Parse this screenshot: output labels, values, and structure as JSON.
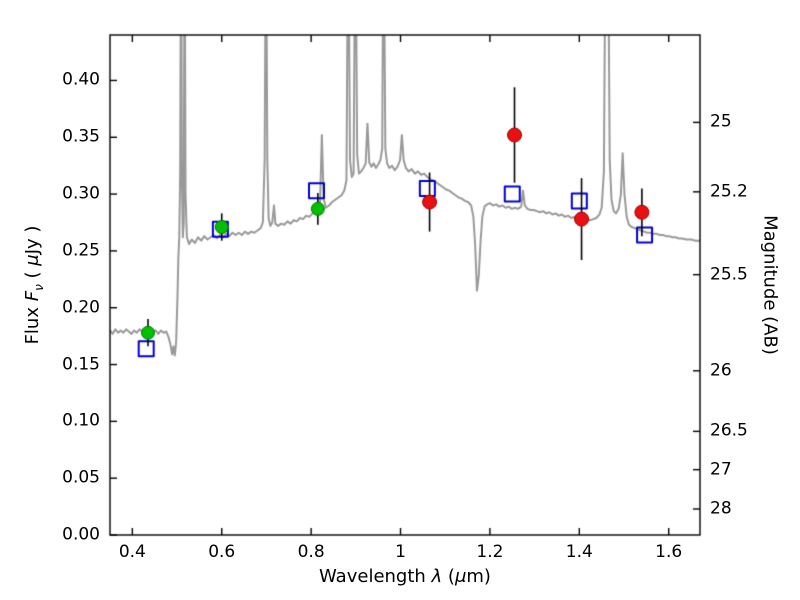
{
  "figure": {
    "background": "#ffffff",
    "frame_color": "#000000",
    "title": ""
  },
  "chart_data": {
    "type": "line",
    "title": "",
    "xlabel_parts": [
      "Wavelength ",
      "λ",
      " (",
      "μ",
      "m)"
    ],
    "ylabel_left_parts": [
      "Flux ",
      "F",
      "ν",
      " ( ",
      "μ",
      "Jy )"
    ],
    "ylabel_right": "Magnitude (AB)",
    "xlim": [
      0.35,
      1.67
    ],
    "ylim": [
      0.0,
      0.44
    ],
    "grid": false,
    "legend": null,
    "errorbar_color": "#000000",
    "x_ticks": [
      {
        "value": 0.4,
        "label": "0.4"
      },
      {
        "value": 0.6,
        "label": "0.6"
      },
      {
        "value": 0.8,
        "label": "0.8"
      },
      {
        "value": 1.0,
        "label": "1"
      },
      {
        "value": 1.2,
        "label": "1.2"
      },
      {
        "value": 1.4,
        "label": "1.4"
      },
      {
        "value": 1.6,
        "label": "1.6"
      }
    ],
    "y_ticks_left": [
      {
        "value": 0.0,
        "label": "0.00"
      },
      {
        "value": 0.05,
        "label": "0.05"
      },
      {
        "value": 0.1,
        "label": "0.10"
      },
      {
        "value": 0.15,
        "label": "0.15"
      },
      {
        "value": 0.2,
        "label": "0.20"
      },
      {
        "value": 0.25,
        "label": "0.25"
      },
      {
        "value": 0.3,
        "label": "0.30"
      },
      {
        "value": 0.35,
        "label": "0.35"
      },
      {
        "value": 0.4,
        "label": "0.40"
      }
    ],
    "y_ticks_right": [
      {
        "label": "25",
        "flux": 0.3631
      },
      {
        "label": "25.2",
        "flux": 0.302
      },
      {
        "label": "25.5",
        "flux": 0.2291
      },
      {
        "label": "26",
        "flux": 0.1445
      },
      {
        "label": "26.5",
        "flux": 0.0912
      },
      {
        "label": "27",
        "flux": 0.0575
      },
      {
        "label": "28",
        "flux": 0.0229
      }
    ],
    "series": [
      {
        "name": "model-spectrum",
        "type": "line",
        "color": "#999999",
        "linewidth": 2,
        "points": [
          [
            0.35,
            0.18
          ],
          [
            0.356,
            0.177
          ],
          [
            0.362,
            0.181
          ],
          [
            0.368,
            0.178
          ],
          [
            0.374,
            0.18
          ],
          [
            0.38,
            0.178
          ],
          [
            0.386,
            0.181
          ],
          [
            0.392,
            0.179
          ],
          [
            0.398,
            0.177
          ],
          [
            0.404,
            0.18
          ],
          [
            0.41,
            0.178
          ],
          [
            0.416,
            0.181
          ],
          [
            0.422,
            0.179
          ],
          [
            0.428,
            0.18
          ],
          [
            0.434,
            0.178
          ],
          [
            0.44,
            0.181
          ],
          [
            0.446,
            0.179
          ],
          [
            0.452,
            0.18
          ],
          [
            0.458,
            0.177
          ],
          [
            0.464,
            0.18
          ],
          [
            0.47,
            0.178
          ],
          [
            0.476,
            0.179
          ],
          [
            0.481,
            0.174
          ],
          [
            0.485,
            0.168
          ],
          [
            0.489,
            0.159
          ],
          [
            0.492,
            0.166
          ],
          [
            0.495,
            0.158
          ],
          [
            0.498,
            0.17
          ],
          [
            0.501,
            0.21
          ],
          [
            0.503,
            0.245
          ],
          [
            0.505,
            0.262
          ],
          [
            0.507,
            0.32
          ],
          [
            0.509,
            0.56
          ],
          [
            0.511,
            0.31
          ],
          [
            0.513,
            0.262
          ],
          [
            0.515,
            0.275
          ],
          [
            0.517,
            0.56
          ],
          [
            0.519,
            0.3
          ],
          [
            0.522,
            0.262
          ],
          [
            0.527,
            0.256
          ],
          [
            0.533,
            0.26
          ],
          [
            0.54,
            0.257
          ],
          [
            0.547,
            0.262
          ],
          [
            0.554,
            0.259
          ],
          [
            0.561,
            0.263
          ],
          [
            0.568,
            0.26
          ],
          [
            0.575,
            0.262
          ],
          [
            0.582,
            0.264
          ],
          [
            0.589,
            0.261
          ],
          [
            0.596,
            0.264
          ],
          [
            0.603,
            0.262
          ],
          [
            0.61,
            0.265
          ],
          [
            0.617,
            0.263
          ],
          [
            0.624,
            0.266
          ],
          [
            0.631,
            0.264
          ],
          [
            0.638,
            0.266
          ],
          [
            0.645,
            0.264
          ],
          [
            0.652,
            0.267
          ],
          [
            0.659,
            0.265
          ],
          [
            0.666,
            0.267
          ],
          [
            0.673,
            0.266
          ],
          [
            0.68,
            0.268
          ],
          [
            0.687,
            0.27
          ],
          [
            0.692,
            0.275
          ],
          [
            0.696,
            0.33
          ],
          [
            0.699,
            0.56
          ],
          [
            0.702,
            0.33
          ],
          [
            0.705,
            0.278
          ],
          [
            0.709,
            0.272
          ],
          [
            0.713,
            0.275
          ],
          [
            0.717,
            0.29
          ],
          [
            0.72,
            0.274
          ],
          [
            0.726,
            0.272
          ],
          [
            0.733,
            0.274
          ],
          [
            0.74,
            0.273
          ],
          [
            0.747,
            0.276
          ],
          [
            0.754,
            0.274
          ],
          [
            0.761,
            0.277
          ],
          [
            0.768,
            0.276
          ],
          [
            0.775,
            0.279
          ],
          [
            0.782,
            0.278
          ],
          [
            0.789,
            0.281
          ],
          [
            0.796,
            0.28
          ],
          [
            0.803,
            0.283
          ],
          [
            0.81,
            0.285
          ],
          [
            0.816,
            0.287
          ],
          [
            0.82,
            0.293
          ],
          [
            0.824,
            0.352
          ],
          [
            0.828,
            0.296
          ],
          [
            0.833,
            0.288
          ],
          [
            0.84,
            0.29
          ],
          [
            0.847,
            0.293
          ],
          [
            0.854,
            0.295
          ],
          [
            0.861,
            0.297
          ],
          [
            0.868,
            0.299
          ],
          [
            0.874,
            0.303
          ],
          [
            0.879,
            0.312
          ],
          [
            0.883,
            0.56
          ],
          [
            0.887,
            0.33
          ],
          [
            0.891,
            0.315
          ],
          [
            0.895,
            0.318
          ],
          [
            0.899,
            0.56
          ],
          [
            0.903,
            0.335
          ],
          [
            0.907,
            0.318
          ],
          [
            0.912,
            0.32
          ],
          [
            0.917,
            0.323
          ],
          [
            0.922,
            0.327
          ],
          [
            0.926,
            0.362
          ],
          [
            0.93,
            0.328
          ],
          [
            0.935,
            0.324
          ],
          [
            0.94,
            0.327
          ],
          [
            0.945,
            0.323
          ],
          [
            0.95,
            0.326
          ],
          [
            0.955,
            0.33
          ],
          [
            0.959,
            0.34
          ],
          [
            0.962,
            0.56
          ],
          [
            0.966,
            0.34
          ],
          [
            0.97,
            0.327
          ],
          [
            0.975,
            0.323
          ],
          [
            0.981,
            0.325
          ],
          [
            0.987,
            0.321
          ],
          [
            0.993,
            0.324
          ],
          [
            0.999,
            0.33
          ],
          [
            1.003,
            0.352
          ],
          [
            1.007,
            0.33
          ],
          [
            1.012,
            0.323
          ],
          [
            1.018,
            0.32
          ],
          [
            1.025,
            0.322
          ],
          [
            1.032,
            0.318
          ],
          [
            1.039,
            0.32
          ],
          [
            1.046,
            0.317
          ],
          [
            1.053,
            0.318
          ],
          [
            1.06,
            0.315
          ],
          [
            1.067,
            0.313
          ],
          [
            1.074,
            0.312
          ],
          [
            1.081,
            0.31
          ],
          [
            1.088,
            0.308
          ],
          [
            1.095,
            0.306
          ],
          [
            1.102,
            0.304
          ],
          [
            1.109,
            0.303
          ],
          [
            1.116,
            0.301
          ],
          [
            1.123,
            0.299
          ],
          [
            1.13,
            0.297
          ],
          [
            1.137,
            0.296
          ],
          [
            1.144,
            0.294
          ],
          [
            1.151,
            0.293
          ],
          [
            1.158,
            0.29
          ],
          [
            1.163,
            0.28
          ],
          [
            1.167,
            0.255
          ],
          [
            1.171,
            0.215
          ],
          [
            1.175,
            0.228
          ],
          [
            1.179,
            0.258
          ],
          [
            1.183,
            0.28
          ],
          [
            1.188,
            0.289
          ],
          [
            1.194,
            0.291
          ],
          [
            1.2,
            0.292
          ],
          [
            1.207,
            0.29
          ],
          [
            1.214,
            0.291
          ],
          [
            1.221,
            0.289
          ],
          [
            1.228,
            0.29
          ],
          [
            1.235,
            0.288
          ],
          [
            1.242,
            0.289
          ],
          [
            1.249,
            0.287
          ],
          [
            1.256,
            0.288
          ],
          [
            1.263,
            0.287
          ],
          [
            1.27,
            0.289
          ],
          [
            1.274,
            0.303
          ],
          [
            1.278,
            0.29
          ],
          [
            1.284,
            0.287
          ],
          [
            1.291,
            0.286
          ],
          [
            1.298,
            0.286
          ],
          [
            1.305,
            0.285
          ],
          [
            1.312,
            0.284
          ],
          [
            1.319,
            0.285
          ],
          [
            1.326,
            0.283
          ],
          [
            1.333,
            0.284
          ],
          [
            1.34,
            0.282
          ],
          [
            1.347,
            0.283
          ],
          [
            1.354,
            0.281
          ],
          [
            1.361,
            0.282
          ],
          [
            1.368,
            0.28
          ],
          [
            1.375,
            0.281
          ],
          [
            1.382,
            0.279
          ],
          [
            1.389,
            0.28
          ],
          [
            1.396,
            0.278
          ],
          [
            1.403,
            0.279
          ],
          [
            1.41,
            0.277
          ],
          [
            1.417,
            0.278
          ],
          [
            1.424,
            0.277
          ],
          [
            1.431,
            0.278
          ],
          [
            1.438,
            0.279
          ],
          [
            1.445,
            0.282
          ],
          [
            1.45,
            0.288
          ],
          [
            1.455,
            0.32
          ],
          [
            1.459,
            0.56
          ],
          [
            1.464,
            0.56
          ],
          [
            1.468,
            0.33
          ],
          [
            1.472,
            0.295
          ],
          [
            1.477,
            0.285
          ],
          [
            1.482,
            0.283
          ],
          [
            1.488,
            0.287
          ],
          [
            1.493,
            0.3
          ],
          [
            1.497,
            0.336
          ],
          [
            1.501,
            0.3
          ],
          [
            1.506,
            0.28
          ],
          [
            1.511,
            0.273
          ],
          [
            1.517,
            0.271
          ],
          [
            1.524,
            0.27
          ],
          [
            1.531,
            0.269
          ],
          [
            1.538,
            0.268
          ],
          [
            1.545,
            0.267
          ],
          [
            1.552,
            0.266
          ],
          [
            1.559,
            0.266
          ],
          [
            1.566,
            0.265
          ],
          [
            1.573,
            0.265
          ],
          [
            1.58,
            0.264
          ],
          [
            1.587,
            0.264
          ],
          [
            1.594,
            0.263
          ],
          [
            1.601,
            0.263
          ],
          [
            1.608,
            0.262
          ],
          [
            1.615,
            0.262
          ],
          [
            1.622,
            0.261
          ],
          [
            1.63,
            0.261
          ],
          [
            1.64,
            0.26
          ],
          [
            1.65,
            0.26
          ],
          [
            1.66,
            0.259
          ],
          [
            1.67,
            0.259
          ]
        ]
      },
      {
        "name": "model-photometry",
        "type": "scatter",
        "marker": "open-square",
        "color": "#0000cd",
        "size": 15,
        "linewidth": 2,
        "points": [
          [
            0.431,
            0.164
          ],
          [
            0.597,
            0.269
          ],
          [
            0.812,
            0.303
          ],
          [
            1.06,
            0.305
          ],
          [
            1.25,
            0.3
          ],
          [
            1.4,
            0.294
          ],
          [
            1.546,
            0.264
          ]
        ]
      },
      {
        "name": "observed-photometry-optical",
        "type": "scatter",
        "marker": "circle",
        "color": "#00c000",
        "edge_color": "#007700",
        "size": 13,
        "points": [
          [
            0.435,
            0.178,
            0.012
          ],
          [
            0.6,
            0.271,
            0.012
          ],
          [
            0.815,
            0.287,
            0.014
          ]
        ]
      },
      {
        "name": "observed-photometry-nir",
        "type": "scatter",
        "marker": "circle",
        "color": "#e81010",
        "edge_color": "#a00000",
        "size": 14,
        "points": [
          [
            1.065,
            0.293,
            0.026
          ],
          [
            1.255,
            0.352,
            0.042
          ],
          [
            1.405,
            0.278,
            0.036
          ],
          [
            1.54,
            0.284,
            0.021
          ]
        ]
      }
    ]
  }
}
